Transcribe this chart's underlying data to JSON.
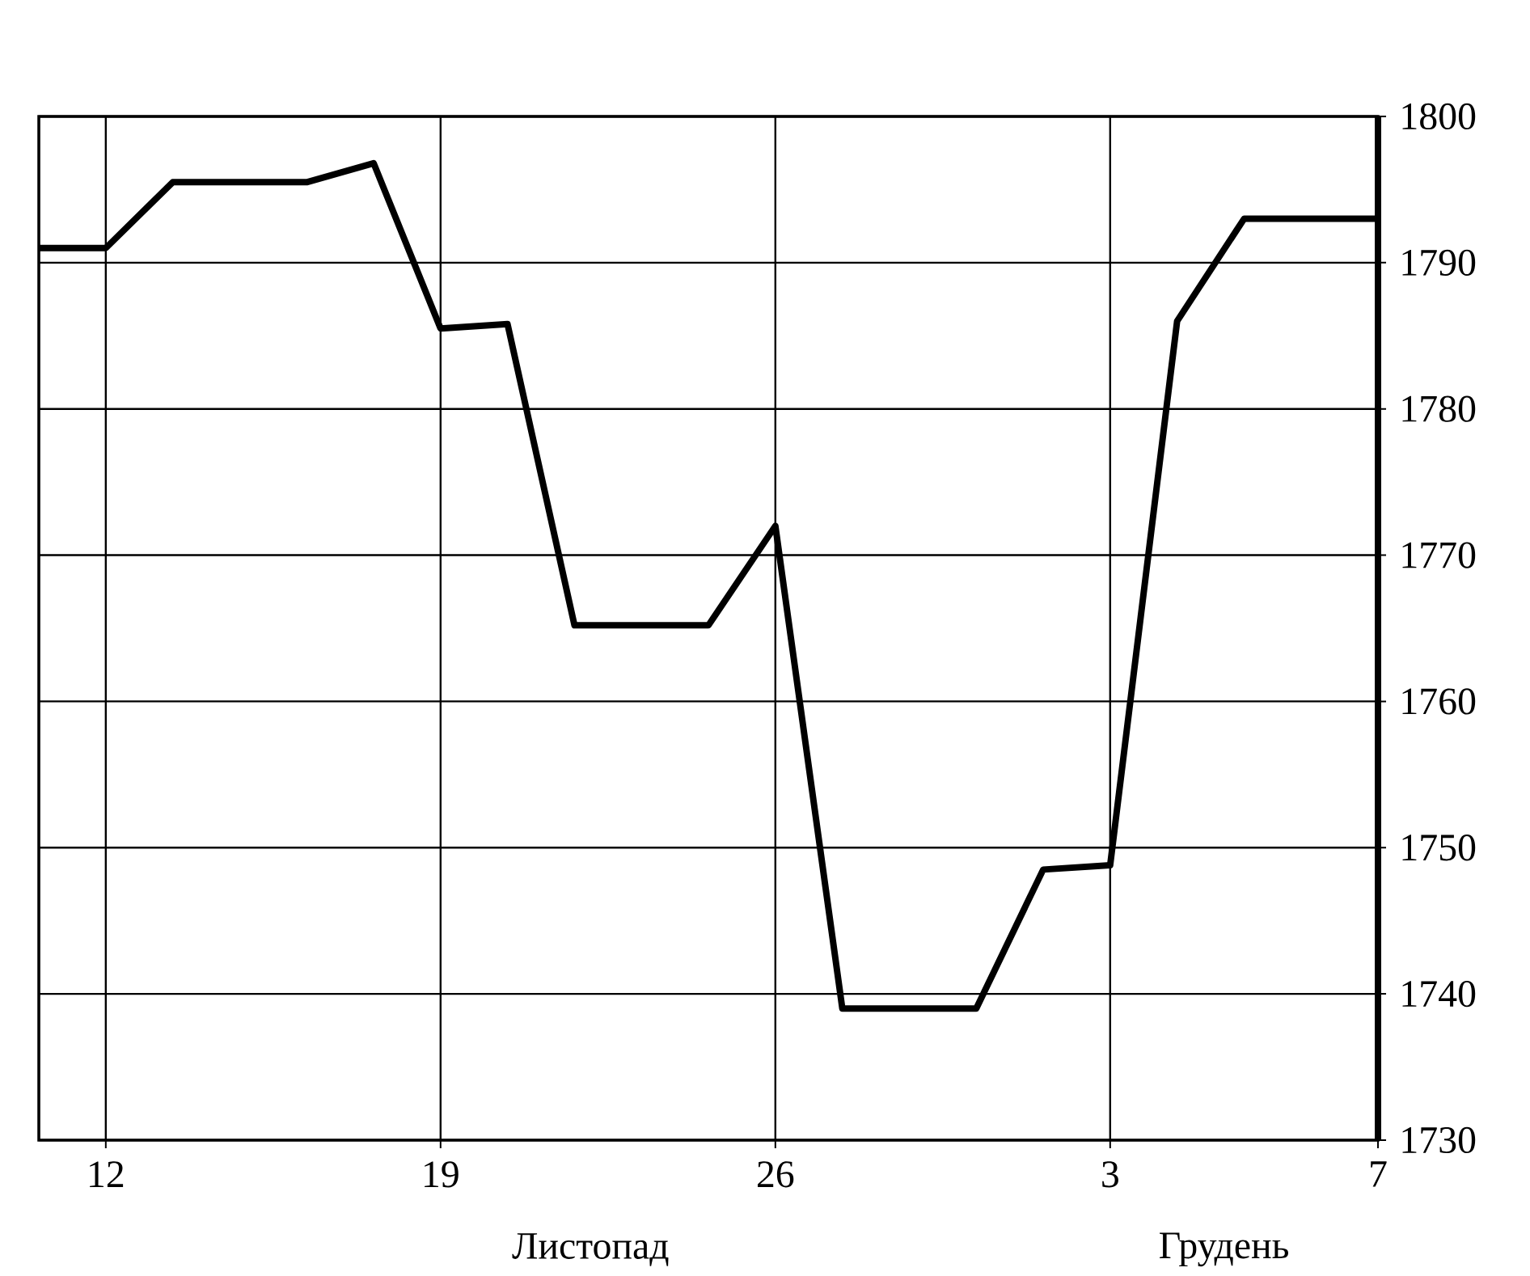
{
  "chart_data": {
    "type": "line",
    "categories": [
      null,
      "12",
      null,
      null,
      null,
      null,
      "19",
      null,
      null,
      null,
      null,
      "26",
      null,
      null,
      null,
      null,
      "3",
      null,
      null,
      null,
      "7"
    ],
    "series": [
      {
        "color": "#000000",
        "values": [
          1791,
          1791,
          1795.5,
          1795.5,
          1795.5,
          1796.8,
          1785.5,
          1785.8,
          1765.2,
          1765.2,
          1765.2,
          1772,
          1739,
          1739,
          1739,
          1748.5,
          1748.8,
          1786,
          1793,
          1793,
          1793
        ]
      }
    ],
    "ylim": [
      1730,
      1800
    ],
    "yticks": [
      1730,
      1740,
      1750,
      1760,
      1770,
      1780,
      1790,
      1800
    ],
    "grid": true,
    "line_style": "solid",
    "annotations": [
      "Листопад",
      "Грудень"
    ]
  }
}
